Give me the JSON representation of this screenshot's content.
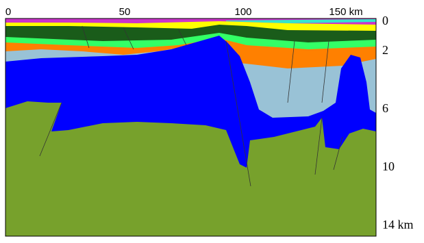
{
  "distance_labels": [
    "0",
    "50",
    "100",
    "150 km"
  ],
  "depth_labels": [
    "0",
    "2",
    "6",
    "10",
    "14 km"
  ]
}
